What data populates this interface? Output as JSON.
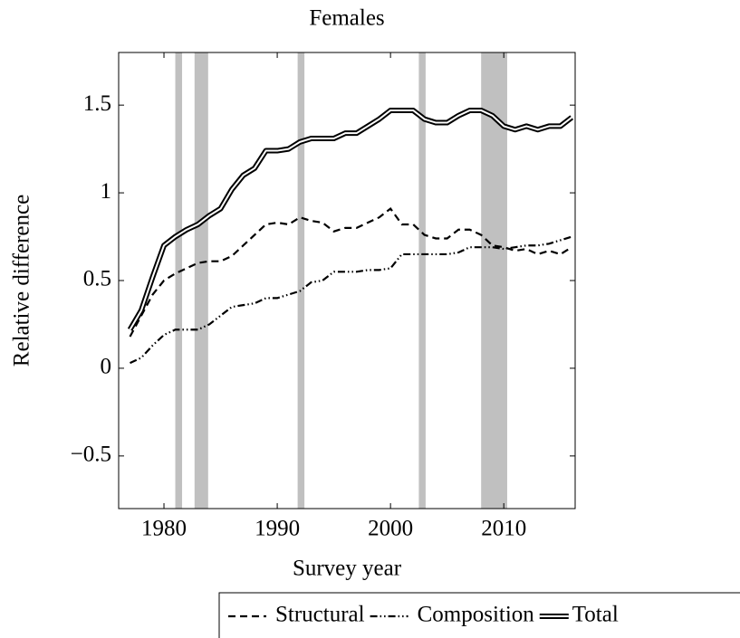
{
  "chart_data": {
    "type": "line",
    "title": "Females",
    "x_label": "Survey year",
    "y_label": "Relative difference",
    "x": [
      1977,
      1978,
      1979,
      1980,
      1981,
      1982,
      1983,
      1984,
      1985,
      1986,
      1987,
      1988,
      1989,
      1990,
      1991,
      1992,
      1993,
      1994,
      1995,
      1996,
      1997,
      1998,
      1999,
      2000,
      2001,
      2002,
      2003,
      2004,
      2005,
      2006,
      2007,
      2008,
      2009,
      2010,
      2011,
      2012,
      2013,
      2014,
      2015,
      2016
    ],
    "series": [
      {
        "name": "Structural",
        "color": "#000000",
        "dash": "dashed",
        "values": [
          0.18,
          0.3,
          0.42,
          0.5,
          0.54,
          0.57,
          0.6,
          0.61,
          0.61,
          0.64,
          0.7,
          0.76,
          0.82,
          0.83,
          0.82,
          0.86,
          0.84,
          0.83,
          0.78,
          0.8,
          0.8,
          0.83,
          0.86,
          0.91,
          0.82,
          0.82,
          0.76,
          0.74,
          0.74,
          0.79,
          0.79,
          0.76,
          0.7,
          0.69,
          0.67,
          0.68,
          0.65,
          0.67,
          0.65,
          0.69
        ]
      },
      {
        "name": "Composition",
        "color": "#000000",
        "dash": "dash-dot-dot",
        "values": [
          0.03,
          0.06,
          0.13,
          0.19,
          0.22,
          0.22,
          0.22,
          0.25,
          0.3,
          0.35,
          0.36,
          0.37,
          0.4,
          0.4,
          0.42,
          0.44,
          0.49,
          0.5,
          0.55,
          0.55,
          0.55,
          0.56,
          0.56,
          0.57,
          0.65,
          0.65,
          0.65,
          0.65,
          0.65,
          0.66,
          0.69,
          0.69,
          0.69,
          0.68,
          0.69,
          0.7,
          0.7,
          0.71,
          0.73,
          0.75
        ]
      },
      {
        "name": "Total",
        "color": "#000000",
        "dash": "double",
        "values": [
          0.22,
          0.33,
          0.52,
          0.7,
          0.75,
          0.79,
          0.82,
          0.87,
          0.91,
          1.02,
          1.1,
          1.14,
          1.24,
          1.24,
          1.25,
          1.29,
          1.31,
          1.31,
          1.31,
          1.34,
          1.34,
          1.38,
          1.42,
          1.47,
          1.47,
          1.47,
          1.42,
          1.4,
          1.4,
          1.44,
          1.47,
          1.47,
          1.44,
          1.38,
          1.36,
          1.38,
          1.36,
          1.38,
          1.38,
          1.43
        ]
      }
    ],
    "shaded_regions": [
      [
        1981.0,
        1981.6
      ],
      [
        1982.7,
        1983.9
      ],
      [
        1991.8,
        1992.4
      ],
      [
        2002.5,
        2003.1
      ],
      [
        2008.0,
        2010.3
      ]
    ],
    "shade_color": "#c0c0c0",
    "xlim": [
      1976,
      2016.3
    ],
    "ylim": [
      -0.8,
      1.8
    ],
    "xticks": [
      1980,
      1990,
      2000,
      2010
    ],
    "yticks": [
      {
        "value": -0.5,
        "label": "−0.5"
      },
      0,
      0.5,
      1,
      1.5
    ],
    "grid": false,
    "legend": "below"
  }
}
